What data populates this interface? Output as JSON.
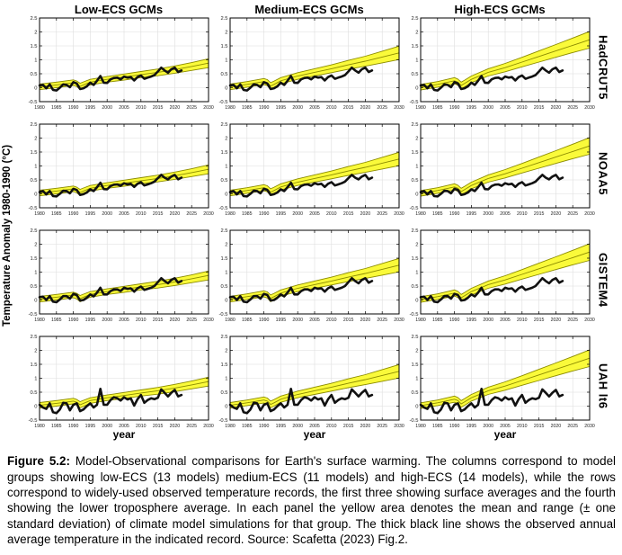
{
  "figure": {
    "y_axis_label": "Temperature Anomaly 1980-1990 (°C)",
    "x_axis_label": "year"
  },
  "caption": {
    "label": "Figure 5.2:",
    "text": " Model-Observational comparisons for Earth's surface warming. The columns correspond to model groups showing low-ECS (13 models) medium-ECS (11 models) and high-ECS (14 models), while the rows correspond to widely-used observed temperature records, the first three showing surface averages and the fourth showing the lower troposphere average. In each panel the yellow area denotes the mean and range (± one standard deviation) of climate model simulations for that group. The thick black line shows the observed annual average temperature in the indicated record. Source: Scafetta (2023) Fig.2."
  },
  "colors": {
    "band_fill": "#FAFA3A",
    "band_edge": "#8C8C00",
    "obs": "#111111",
    "grid": "#DEDEDE",
    "axis": "#000000",
    "tick_text": "#222222"
  },
  "chart_data": {
    "type": "line",
    "title": "Model-Observational comparisons for Earth's surface warming",
    "xlabel": "year",
    "ylabel": "Temperature Anomaly 1980-1990 (°C)",
    "layout": "4 rows (observed records) x 3 columns (model ECS groups), grid on, no legend",
    "axes": {
      "xlim": [
        1980,
        2030
      ],
      "ylim": [
        -0.5,
        2.5
      ],
      "x_ticks": [
        1980,
        1985,
        1990,
        1995,
        2000,
        2005,
        2010,
        2015,
        2020,
        2025,
        2030
      ],
      "y_ticks": [
        2.5,
        2,
        1.5,
        1,
        0.5,
        0,
        -0.5
      ]
    },
    "columns": [
      {
        "label": "Low-ECS GCMs",
        "band": {
          "years": [
            1980,
            1985,
            1990,
            1991,
            1992,
            1993,
            1995,
            2000,
            2005,
            2010,
            2015,
            2020,
            2025,
            2030
          ],
          "lower": [
            -0.07,
            0.0,
            0.08,
            0.04,
            -0.06,
            -0.01,
            0.1,
            0.2,
            0.27,
            0.36,
            0.43,
            0.52,
            0.62,
            0.72
          ],
          "mean": [
            0.03,
            0.1,
            0.18,
            0.14,
            0.05,
            0.1,
            0.2,
            0.3,
            0.38,
            0.47,
            0.55,
            0.65,
            0.76,
            0.88
          ],
          "upper": [
            0.13,
            0.2,
            0.28,
            0.24,
            0.16,
            0.21,
            0.3,
            0.4,
            0.49,
            0.58,
            0.67,
            0.78,
            0.9,
            1.04
          ]
        }
      },
      {
        "label": "Medium-ECS GCMs",
        "band": {
          "years": [
            1980,
            1985,
            1990,
            1991,
            1992,
            1993,
            1995,
            2000,
            2005,
            2010,
            2015,
            2020,
            2025,
            2030
          ],
          "lower": [
            -0.07,
            0.02,
            0.11,
            0.07,
            -0.06,
            0.0,
            0.14,
            0.3,
            0.42,
            0.54,
            0.66,
            0.77,
            0.89,
            1.01
          ],
          "mean": [
            0.03,
            0.12,
            0.22,
            0.18,
            0.06,
            0.12,
            0.25,
            0.42,
            0.55,
            0.68,
            0.82,
            0.95,
            1.1,
            1.25
          ],
          "upper": [
            0.13,
            0.22,
            0.33,
            0.29,
            0.18,
            0.24,
            0.36,
            0.54,
            0.68,
            0.82,
            0.98,
            1.13,
            1.31,
            1.49
          ]
        }
      },
      {
        "label": "High-ECS GCMs",
        "band": {
          "years": [
            1980,
            1985,
            1990,
            1991,
            1992,
            1993,
            1995,
            2000,
            2005,
            2010,
            2015,
            2020,
            2025,
            2030
          ],
          "lower": [
            -0.08,
            0.02,
            0.14,
            0.09,
            -0.04,
            0.03,
            0.18,
            0.42,
            0.57,
            0.75,
            0.92,
            1.09,
            1.26,
            1.42
          ],
          "mean": [
            0.02,
            0.12,
            0.25,
            0.2,
            0.08,
            0.15,
            0.3,
            0.55,
            0.72,
            0.92,
            1.12,
            1.32,
            1.52,
            1.72
          ],
          "upper": [
            0.12,
            0.22,
            0.36,
            0.31,
            0.2,
            0.27,
            0.42,
            0.68,
            0.87,
            1.09,
            1.32,
            1.55,
            1.78,
            2.02
          ]
        }
      }
    ],
    "rows": [
      {
        "label": "HadCRUT5",
        "observed": {
          "years": [
            1980,
            1981,
            1982,
            1983,
            1984,
            1985,
            1986,
            1987,
            1988,
            1989,
            1990,
            1991,
            1992,
            1993,
            1994,
            1995,
            1996,
            1997,
            1998,
            1999,
            2000,
            2001,
            2002,
            2003,
            2004,
            2005,
            2006,
            2007,
            2008,
            2009,
            2010,
            2011,
            2012,
            2013,
            2014,
            2015,
            2016,
            2017,
            2018,
            2019,
            2020,
            2021,
            2022
          ],
          "values": [
            0.08,
            0.1,
            -0.02,
            0.12,
            -0.08,
            -0.1,
            0.0,
            0.12,
            0.1,
            0.02,
            0.2,
            0.15,
            -0.05,
            -0.02,
            0.05,
            0.18,
            0.1,
            0.25,
            0.42,
            0.18,
            0.17,
            0.3,
            0.35,
            0.36,
            0.3,
            0.4,
            0.36,
            0.38,
            0.26,
            0.38,
            0.44,
            0.32,
            0.36,
            0.4,
            0.45,
            0.58,
            0.72,
            0.62,
            0.54,
            0.66,
            0.72,
            0.56,
            0.62
          ]
        }
      },
      {
        "label": "NOAA5",
        "observed": {
          "years": [
            1980,
            1981,
            1982,
            1983,
            1984,
            1985,
            1986,
            1987,
            1988,
            1989,
            1990,
            1991,
            1992,
            1993,
            1994,
            1995,
            1996,
            1997,
            1998,
            1999,
            2000,
            2001,
            2002,
            2003,
            2004,
            2005,
            2006,
            2007,
            2008,
            2009,
            2010,
            2011,
            2012,
            2013,
            2014,
            2015,
            2016,
            2017,
            2018,
            2019,
            2020,
            2021,
            2022
          ],
          "values": [
            0.06,
            0.1,
            -0.02,
            0.1,
            -0.08,
            -0.09,
            0.0,
            0.11,
            0.1,
            0.02,
            0.18,
            0.14,
            -0.04,
            -0.01,
            0.05,
            0.16,
            0.1,
            0.24,
            0.4,
            0.17,
            0.16,
            0.28,
            0.33,
            0.34,
            0.29,
            0.38,
            0.34,
            0.36,
            0.25,
            0.36,
            0.42,
            0.3,
            0.34,
            0.38,
            0.44,
            0.56,
            0.68,
            0.58,
            0.52,
            0.62,
            0.68,
            0.52,
            0.58
          ]
        }
      },
      {
        "label": "GISTEM4",
        "observed": {
          "years": [
            1980,
            1981,
            1982,
            1983,
            1984,
            1985,
            1986,
            1987,
            1988,
            1989,
            1990,
            1991,
            1992,
            1993,
            1994,
            1995,
            1996,
            1997,
            1998,
            1999,
            2000,
            2001,
            2002,
            2003,
            2004,
            2005,
            2006,
            2007,
            2008,
            2009,
            2010,
            2011,
            2012,
            2013,
            2014,
            2015,
            2016,
            2017,
            2018,
            2019,
            2020,
            2021,
            2022
          ],
          "values": [
            0.1,
            0.12,
            0.0,
            0.14,
            -0.06,
            -0.08,
            0.02,
            0.14,
            0.14,
            0.05,
            0.22,
            0.18,
            -0.02,
            0.0,
            0.08,
            0.2,
            0.13,
            0.26,
            0.44,
            0.2,
            0.2,
            0.32,
            0.38,
            0.38,
            0.32,
            0.44,
            0.4,
            0.42,
            0.3,
            0.42,
            0.48,
            0.36,
            0.4,
            0.44,
            0.5,
            0.64,
            0.78,
            0.68,
            0.6,
            0.72,
            0.78,
            0.62,
            0.68
          ]
        }
      },
      {
        "label": "UAH lt6",
        "observed": {
          "years": [
            1980,
            1981,
            1982,
            1983,
            1984,
            1985,
            1986,
            1987,
            1988,
            1989,
            1990,
            1991,
            1992,
            1993,
            1994,
            1995,
            1996,
            1997,
            1998,
            1999,
            2000,
            2001,
            2002,
            2003,
            2004,
            2005,
            2006,
            2007,
            2008,
            2009,
            2010,
            2011,
            2012,
            2013,
            2014,
            2015,
            2016,
            2017,
            2018,
            2019,
            2020,
            2021,
            2022
          ],
          "values": [
            0.05,
            -0.05,
            -0.1,
            0.1,
            -0.22,
            -0.25,
            -0.12,
            0.12,
            0.1,
            -0.15,
            0.05,
            0.1,
            -0.18,
            -0.12,
            0.0,
            0.1,
            -0.05,
            0.05,
            0.62,
            0.05,
            0.05,
            0.22,
            0.32,
            0.28,
            0.2,
            0.32,
            0.24,
            0.28,
            0.02,
            0.25,
            0.4,
            0.12,
            0.22,
            0.28,
            0.25,
            0.3,
            0.6,
            0.48,
            0.35,
            0.48,
            0.58,
            0.35,
            0.4
          ]
        }
      }
    ]
  }
}
